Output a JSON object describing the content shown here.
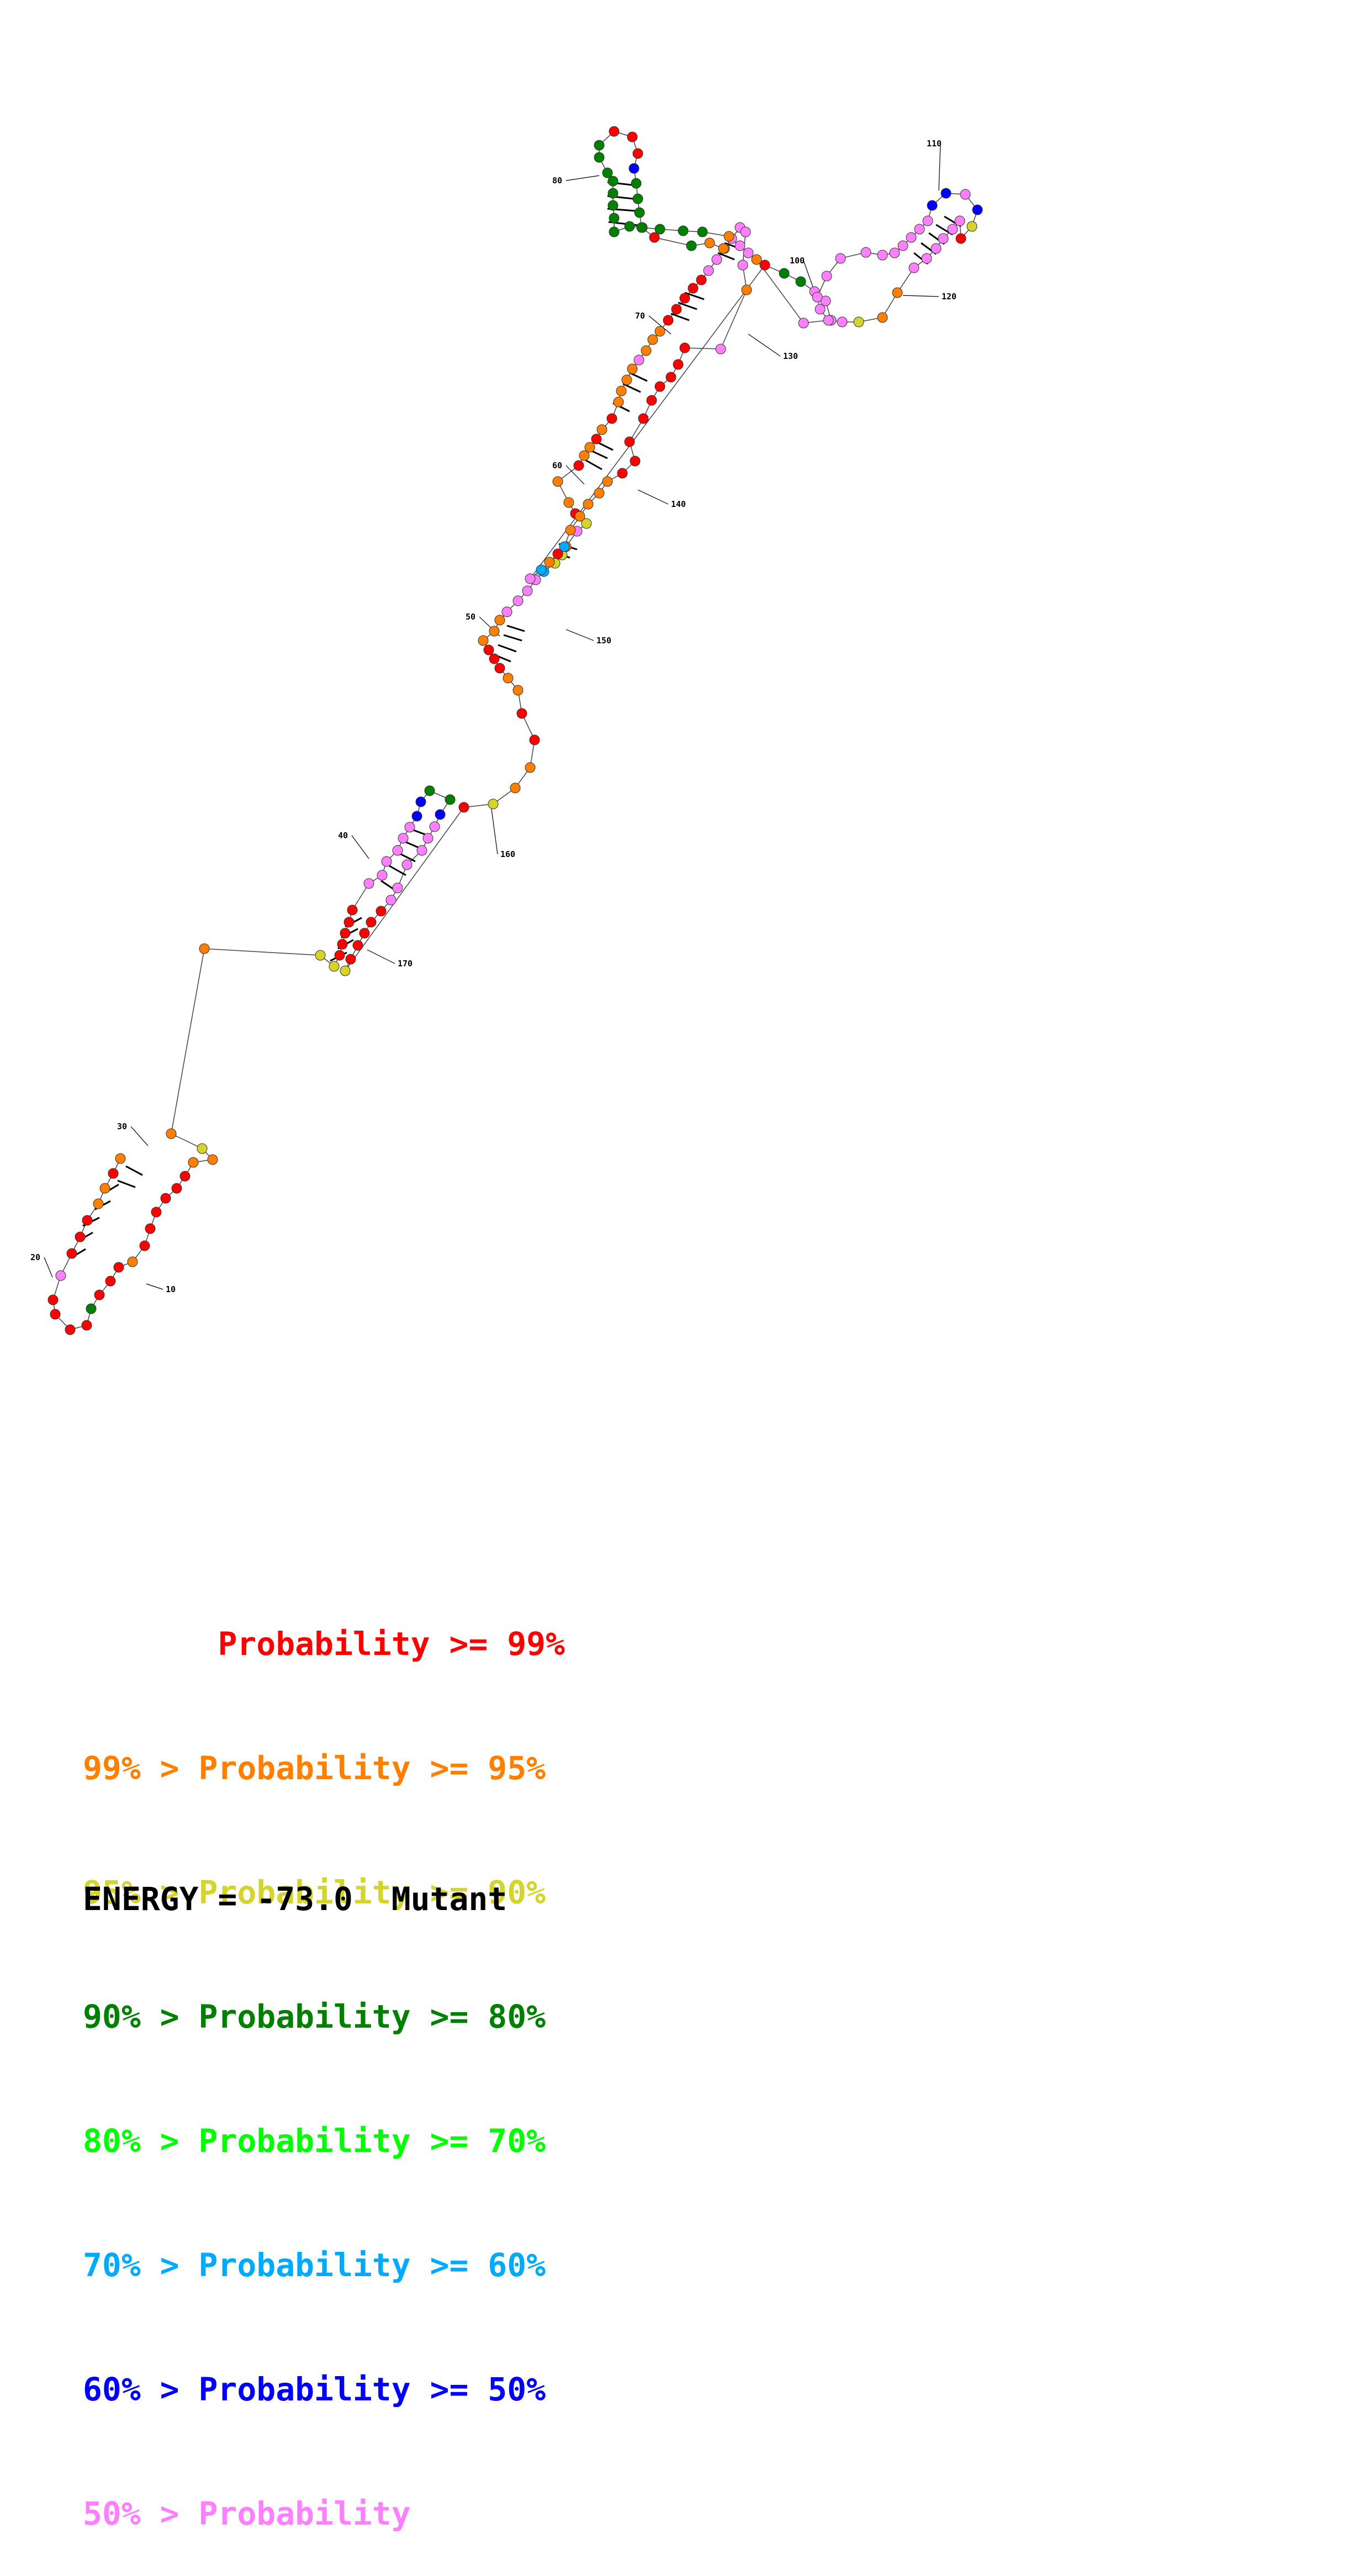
{
  "colors": {
    "c99": "#ff0000",
    "c95": "#ff7f00",
    "c90": "#d4d42a",
    "c80": "#008000",
    "c70": "#00ff00",
    "c60": "#00aaff",
    "c50": "#0000ff",
    "clow": "#ff80ff"
  },
  "position_labels": [
    "10",
    "20",
    "30",
    "40",
    "50",
    "60",
    "70",
    "80",
    "100",
    "110",
    "120",
    "130",
    "140",
    "150",
    "160",
    "170"
  ],
  "legend": [
    {
      "prefix": "       ",
      "label": "Probability >= 99%",
      "color_key": "c99"
    },
    {
      "prefix": "99% > ",
      "label": "Probability >= 95%",
      "color_key": "c95"
    },
    {
      "prefix": "95% > ",
      "label": "Probability >= 90%",
      "color_key": "c90"
    },
    {
      "prefix": "90% > ",
      "label": "Probability >= 80%",
      "color_key": "c80"
    },
    {
      "prefix": "80% > ",
      "label": "Probability >= 70%",
      "color_key": "c70"
    },
    {
      "prefix": "70% > ",
      "label": "Probability >= 60%",
      "color_key": "c60"
    },
    {
      "prefix": "60% > ",
      "label": "Probability >= 50%",
      "color_key": "c50"
    },
    {
      "prefix": "50% > ",
      "label": "Probability",
      "color_key": "clow"
    }
  ],
  "energy": {
    "label": "ENERGY = ",
    "value": "-73.0",
    "tag": "Mutant"
  }
}
